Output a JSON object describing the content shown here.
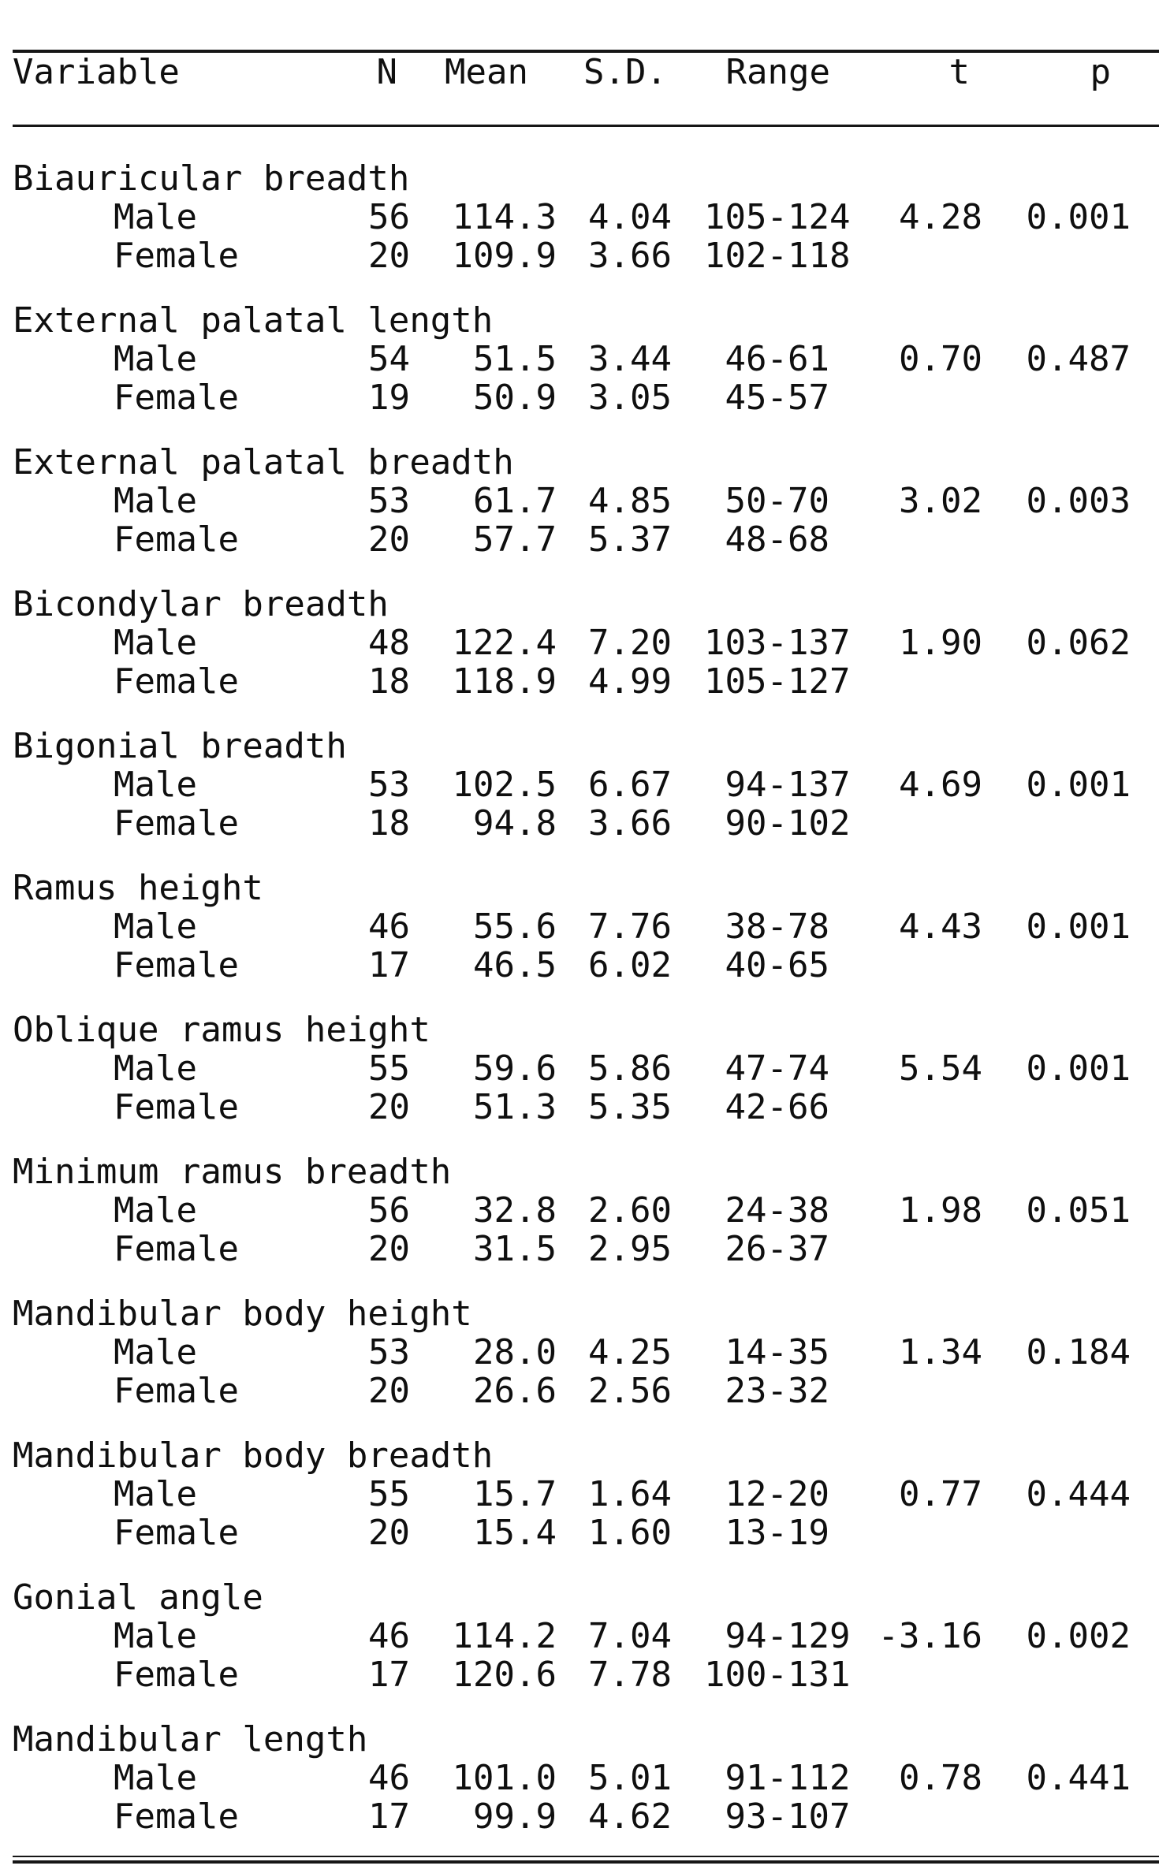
{
  "table": {
    "columns": [
      "Variable",
      "N",
      "Mean",
      "S.D.",
      "Range",
      "t",
      "p"
    ],
    "groups": [
      {
        "variable": "Biauricular breadth",
        "rows": [
          {
            "sex": "Male",
            "n": "56",
            "mean": "114.3",
            "sd": "4.04",
            "range": "105-124",
            "t": "4.28",
            "p": "0.001"
          },
          {
            "sex": "Female",
            "n": "20",
            "mean": "109.9",
            "sd": "3.66",
            "range": "102-118",
            "t": "",
            "p": ""
          }
        ]
      },
      {
        "variable": "External palatal length",
        "rows": [
          {
            "sex": "Male",
            "n": "54",
            "mean": "51.5",
            "sd": "3.44",
            "range": "46-61",
            "t": "0.70",
            "p": "0.487"
          },
          {
            "sex": "Female",
            "n": "19",
            "mean": "50.9",
            "sd": "3.05",
            "range": "45-57",
            "t": "",
            "p": ""
          }
        ]
      },
      {
        "variable": "External palatal breadth",
        "rows": [
          {
            "sex": "Male",
            "n": "53",
            "mean": "61.7",
            "sd": "4.85",
            "range": "50-70",
            "t": "3.02",
            "p": "0.003"
          },
          {
            "sex": "Female",
            "n": "20",
            "mean": "57.7",
            "sd": "5.37",
            "range": "48-68",
            "t": "",
            "p": ""
          }
        ]
      },
      {
        "variable": "Bicondylar breadth",
        "rows": [
          {
            "sex": "Male",
            "n": "48",
            "mean": "122.4",
            "sd": "7.20",
            "range": "103-137",
            "t": "1.90",
            "p": "0.062"
          },
          {
            "sex": "Female",
            "n": "18",
            "mean": "118.9",
            "sd": "4.99",
            "range": "105-127",
            "t": "",
            "p": ""
          }
        ]
      },
      {
        "variable": "Bigonial breadth",
        "rows": [
          {
            "sex": "Male",
            "n": "53",
            "mean": "102.5",
            "sd": "6.67",
            "range": "94-137",
            "t": "4.69",
            "p": "0.001"
          },
          {
            "sex": "Female",
            "n": "18",
            "mean": "94.8",
            "sd": "3.66",
            "range": "90-102",
            "t": "",
            "p": ""
          }
        ]
      },
      {
        "variable": "Ramus height",
        "rows": [
          {
            "sex": "Male",
            "n": "46",
            "mean": "55.6",
            "sd": "7.76",
            "range": "38-78",
            "t": "4.43",
            "p": "0.001"
          },
          {
            "sex": "Female",
            "n": "17",
            "mean": "46.5",
            "sd": "6.02",
            "range": "40-65",
            "t": "",
            "p": ""
          }
        ]
      },
      {
        "variable": "Oblique ramus height",
        "rows": [
          {
            "sex": "Male",
            "n": "55",
            "mean": "59.6",
            "sd": "5.86",
            "range": "47-74",
            "t": "5.54",
            "p": "0.001"
          },
          {
            "sex": "Female",
            "n": "20",
            "mean": "51.3",
            "sd": "5.35",
            "range": "42-66",
            "t": "",
            "p": ""
          }
        ]
      },
      {
        "variable": "Minimum ramus breadth",
        "rows": [
          {
            "sex": "Male",
            "n": "56",
            "mean": "32.8",
            "sd": "2.60",
            "range": "24-38",
            "t": "1.98",
            "p": "0.051"
          },
          {
            "sex": "Female",
            "n": "20",
            "mean": "31.5",
            "sd": "2.95",
            "range": "26-37",
            "t": "",
            "p": ""
          }
        ]
      },
      {
        "variable": "Mandibular body height",
        "rows": [
          {
            "sex": "Male",
            "n": "53",
            "mean": "28.0",
            "sd": "4.25",
            "range": "14-35",
            "t": "1.34",
            "p": "0.184"
          },
          {
            "sex": "Female",
            "n": "20",
            "mean": "26.6",
            "sd": "2.56",
            "range": "23-32",
            "t": "",
            "p": ""
          }
        ]
      },
      {
        "variable": "Mandibular body breadth",
        "rows": [
          {
            "sex": "Male",
            "n": "55",
            "mean": "15.7",
            "sd": "1.64",
            "range": "12-20",
            "t": "0.77",
            "p": "0.444"
          },
          {
            "sex": "Female",
            "n": "20",
            "mean": "15.4",
            "sd": "1.60",
            "range": "13-19",
            "t": "",
            "p": ""
          }
        ]
      },
      {
        "variable": "Gonial angle",
        "rows": [
          {
            "sex": "Male",
            "n": "46",
            "mean": "114.2",
            "sd": "7.04",
            "range": "94-129",
            "t": "-3.16",
            "p": "0.002"
          },
          {
            "sex": "Female",
            "n": "17",
            "mean": "120.6",
            "sd": "7.78",
            "range": "100-131",
            "t": "",
            "p": ""
          }
        ]
      },
      {
        "variable": "Mandibular length",
        "rows": [
          {
            "sex": "Male",
            "n": "46",
            "mean": "101.0",
            "sd": "5.01",
            "range": "91-112",
            "t": "0.78",
            "p": "0.441"
          },
          {
            "sex": "Female",
            "n": "17",
            "mean": "99.9",
            "sd": "4.62",
            "range": "93-107",
            "t": "",
            "p": ""
          }
        ]
      }
    ]
  },
  "colors": {
    "text": "#0f0f0f",
    "rule": "#161616",
    "background": "#ffffff"
  }
}
